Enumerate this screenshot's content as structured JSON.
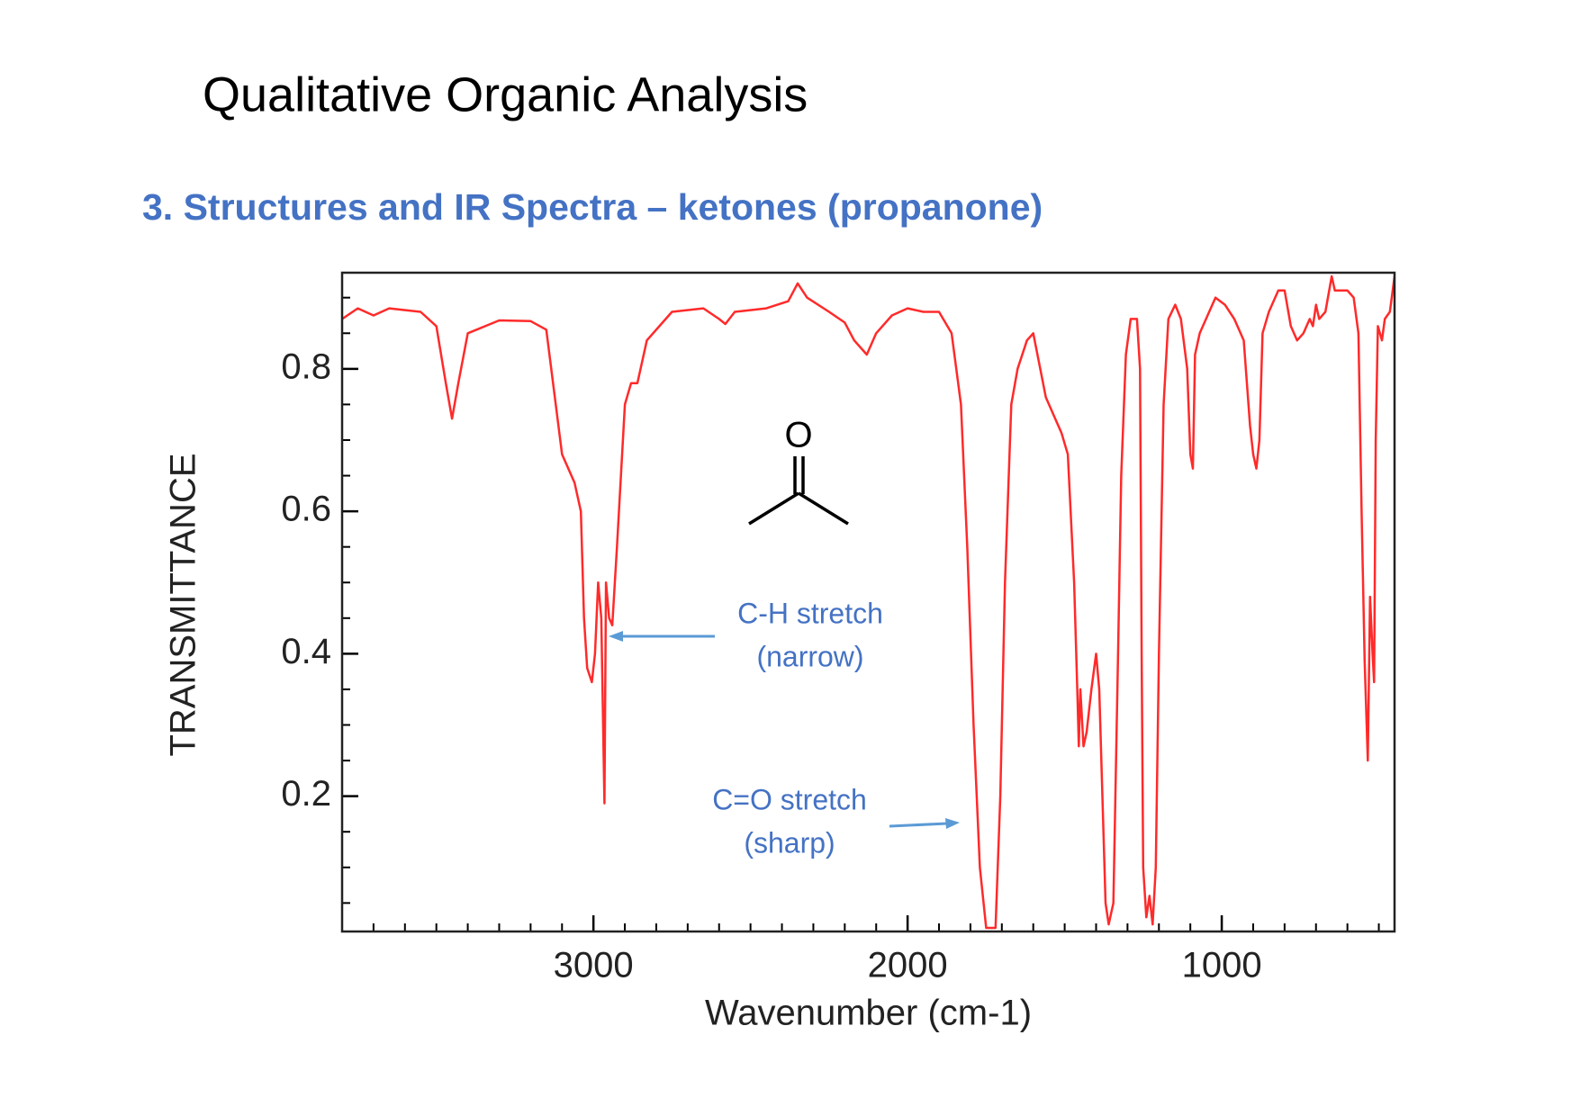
{
  "chart_data": {
    "type": "line",
    "title": "Qualitative Organic Analysis",
    "subtitle": "3. Structures and IR Spectra – ketones (propanone)",
    "x_label": "Wavenumber (cm-1)",
    "y_label": "TRANSMITTANCE",
    "structure_label": "O",
    "annotations": [
      {
        "lines": [
          "C-H stretch",
          "(narrow)"
        ]
      },
      {
        "lines": [
          "C=O stretch",
          "(sharp)"
        ]
      }
    ],
    "color": "#ff2a2a",
    "xlim": [
      3800,
      450
    ],
    "ylim": [
      0.01,
      0.935
    ],
    "xticks": [
      3000,
      2000,
      1000
    ],
    "yticks": [
      0.2,
      0.4,
      0.6,
      0.8
    ],
    "xminorticks": [
      3700,
      3600,
      3500,
      3400,
      3300,
      3200,
      3100,
      2900,
      2800,
      2700,
      2600,
      2500,
      2400,
      2300,
      2200,
      2100,
      1900,
      1800,
      1700,
      1600,
      1500,
      1400,
      1300,
      1200,
      1100,
      900,
      800,
      700,
      600,
      500
    ],
    "yminorticks": [
      0.05,
      0.1,
      0.15,
      0.25,
      0.3,
      0.35,
      0.45,
      0.5,
      0.55,
      0.65,
      0.7,
      0.75,
      0.85,
      0.9
    ],
    "x": [
      3800,
      3750,
      3700,
      3650,
      3550,
      3500,
      3470,
      3450,
      3430,
      3400,
      3300,
      3200,
      3150,
      3120,
      3100,
      3060,
      3040,
      3030,
      3020,
      3005,
      2995,
      2985,
      2975,
      2965,
      2960,
      2950,
      2940,
      2925,
      2900,
      2880,
      2860,
      2830,
      2750,
      2650,
      2600,
      2580,
      2550,
      2450,
      2380,
      2350,
      2320,
      2250,
      2200,
      2170,
      2130,
      2100,
      2050,
      2000,
      1950,
      1900,
      1860,
      1830,
      1810,
      1790,
      1770,
      1750,
      1720,
      1705,
      1690,
      1670,
      1650,
      1620,
      1600,
      1560,
      1530,
      1510,
      1490,
      1470,
      1460,
      1455,
      1450,
      1440,
      1430,
      1415,
      1400,
      1390,
      1380,
      1370,
      1360,
      1345,
      1330,
      1320,
      1305,
      1290,
      1270,
      1260,
      1255,
      1250,
      1240,
      1230,
      1220,
      1210,
      1200,
      1185,
      1170,
      1148,
      1130,
      1110,
      1100,
      1092,
      1085,
      1070,
      1040,
      1020,
      990,
      960,
      930,
      920,
      910,
      900,
      890,
      880,
      870,
      850,
      820,
      800,
      780,
      760,
      740,
      720,
      710,
      700,
      690,
      670,
      650,
      640,
      600,
      580,
      565,
      555,
      545,
      535,
      528,
      520,
      515,
      510,
      503,
      490,
      481,
      465,
      450
    ],
    "values": [
      0.87,
      0.885,
      0.875,
      0.885,
      0.88,
      0.86,
      0.78,
      0.73,
      0.78,
      0.85,
      0.868,
      0.867,
      0.855,
      0.75,
      0.68,
      0.64,
      0.6,
      0.45,
      0.38,
      0.36,
      0.4,
      0.5,
      0.45,
      0.19,
      0.5,
      0.45,
      0.44,
      0.55,
      0.75,
      0.78,
      0.78,
      0.84,
      0.88,
      0.885,
      0.87,
      0.863,
      0.88,
      0.885,
      0.895,
      0.92,
      0.9,
      0.88,
      0.865,
      0.84,
      0.82,
      0.85,
      0.875,
      0.885,
      0.88,
      0.88,
      0.85,
      0.75,
      0.55,
      0.3,
      0.1,
      0.015,
      0.015,
      0.2,
      0.5,
      0.75,
      0.8,
      0.84,
      0.85,
      0.76,
      0.73,
      0.71,
      0.68,
      0.5,
      0.35,
      0.27,
      0.35,
      0.27,
      0.29,
      0.35,
      0.4,
      0.35,
      0.2,
      0.05,
      0.02,
      0.05,
      0.4,
      0.65,
      0.82,
      0.87,
      0.87,
      0.8,
      0.4,
      0.1,
      0.03,
      0.06,
      0.02,
      0.1,
      0.4,
      0.75,
      0.87,
      0.89,
      0.87,
      0.8,
      0.68,
      0.66,
      0.82,
      0.85,
      0.88,
      0.9,
      0.89,
      0.87,
      0.84,
      0.78,
      0.72,
      0.68,
      0.66,
      0.7,
      0.85,
      0.88,
      0.91,
      0.91,
      0.86,
      0.84,
      0.85,
      0.87,
      0.86,
      0.89,
      0.87,
      0.88,
      0.93,
      0.91,
      0.91,
      0.9,
      0.85,
      0.6,
      0.39,
      0.25,
      0.48,
      0.4,
      0.36,
      0.7,
      0.86,
      0.84,
      0.87,
      0.88,
      0.93
    ]
  }
}
